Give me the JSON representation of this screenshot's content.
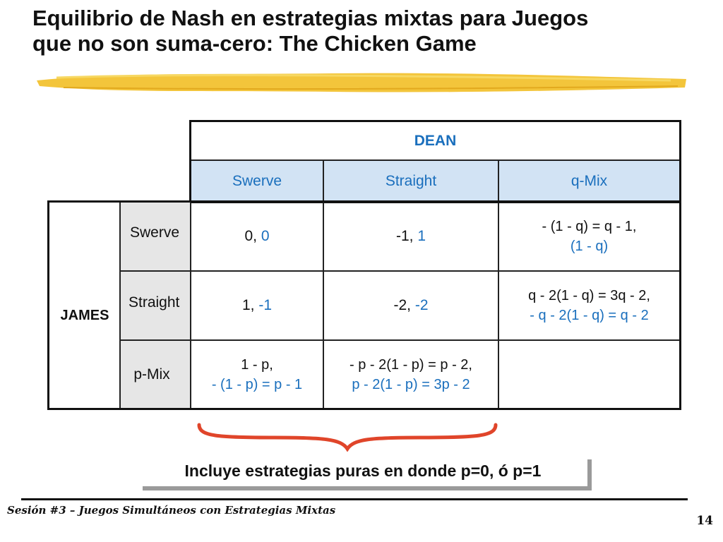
{
  "slide": {
    "title_line1": "Equilibrio de Nash en estrategias mixtas para Juegos",
    "title_line2": "que no son suma-cero: The Chicken Game",
    "footer": "Sesión #3 – Juegos Simultáneos con Estrategias Mixtas",
    "page_number": "14",
    "callout": "Incluye estrategias puras en donde p=0, ó p=1"
  },
  "game": {
    "column_player": "DEAN",
    "row_player": "JAMES",
    "col_headers": [
      "Swerve",
      "Straight",
      "q-Mix"
    ],
    "row_headers": [
      "Swerve",
      "Straight",
      "p-Mix"
    ],
    "cells": {
      "r1c1": {
        "a": "0,",
        "b": "0"
      },
      "r1c2": {
        "a": "-1,",
        "b": "1"
      },
      "r1c3": {
        "line1": "- (1 - q) = q - 1,",
        "line2": "(1 - q)"
      },
      "r2c1": {
        "a": "1,",
        "b": "-1"
      },
      "r2c2": {
        "a": "-2,",
        "b": "-2"
      },
      "r2c3": {
        "line1": "q - 2(1 - q) = 3q - 2,",
        "line2": "- q - 2(1 - q) = q - 2"
      },
      "r3c1": {
        "line1": "1 - p,",
        "line2": "- (1 - p) = p - 1"
      },
      "r3c2": {
        "line1": "- p - 2(1 - p) = p - 2,",
        "line2": "p - 2(1 - p) = 3p - 2"
      }
    }
  },
  "colors": {
    "accent_blue": "#1a6fbd",
    "header_fill": "#d2e3f4",
    "row_header_fill": "#e6e6e6",
    "brace": "#e0452a",
    "brush": "#f2c230"
  }
}
